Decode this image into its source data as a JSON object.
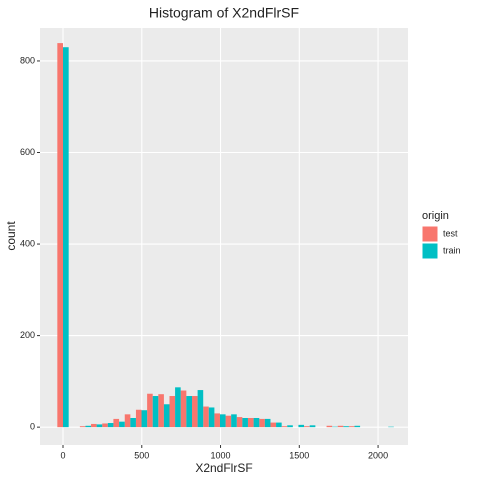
{
  "chart_data": {
    "type": "histogram",
    "title": "Histogram of X2ndFlrSF",
    "x_label": "X2ndFlrSF",
    "y_label": "count",
    "bins": [
      -36,
      36,
      107,
      178,
      249,
      320,
      392,
      463,
      534,
      605,
      676,
      747,
      819,
      890,
      961,
      1032,
      1103,
      1174,
      1246,
      1317,
      1388,
      1459,
      1530,
      1602,
      1673,
      1744,
      1815,
      1886,
      1957,
      2029,
      2100
    ],
    "series": [
      {
        "name": "test",
        "color": "#F8766D",
        "values": [
          839,
          0,
          2,
          7,
          8,
          18,
          28,
          38,
          73,
          72,
          68,
          80,
          68,
          45,
          30,
          25,
          22,
          20,
          18,
          10,
          2,
          0,
          2,
          0,
          3,
          3,
          2,
          0,
          0,
          0
        ]
      },
      {
        "name": "train",
        "color": "#00BFC4",
        "values": [
          830,
          0,
          3,
          6,
          9,
          12,
          20,
          37,
          68,
          50,
          87,
          68,
          81,
          43,
          28,
          28,
          20,
          20,
          18,
          10,
          4,
          5,
          4,
          0,
          1,
          2,
          3,
          0,
          0,
          1
        ]
      }
    ],
    "legend_title": "origin",
    "xlim": [
      -146,
      2190
    ],
    "ylim": [
      -39,
      872
    ],
    "xticks": [
      0,
      500,
      1000,
      1500,
      2000
    ],
    "yticks": [
      0,
      200,
      400,
      600,
      800
    ],
    "grid": true
  }
}
